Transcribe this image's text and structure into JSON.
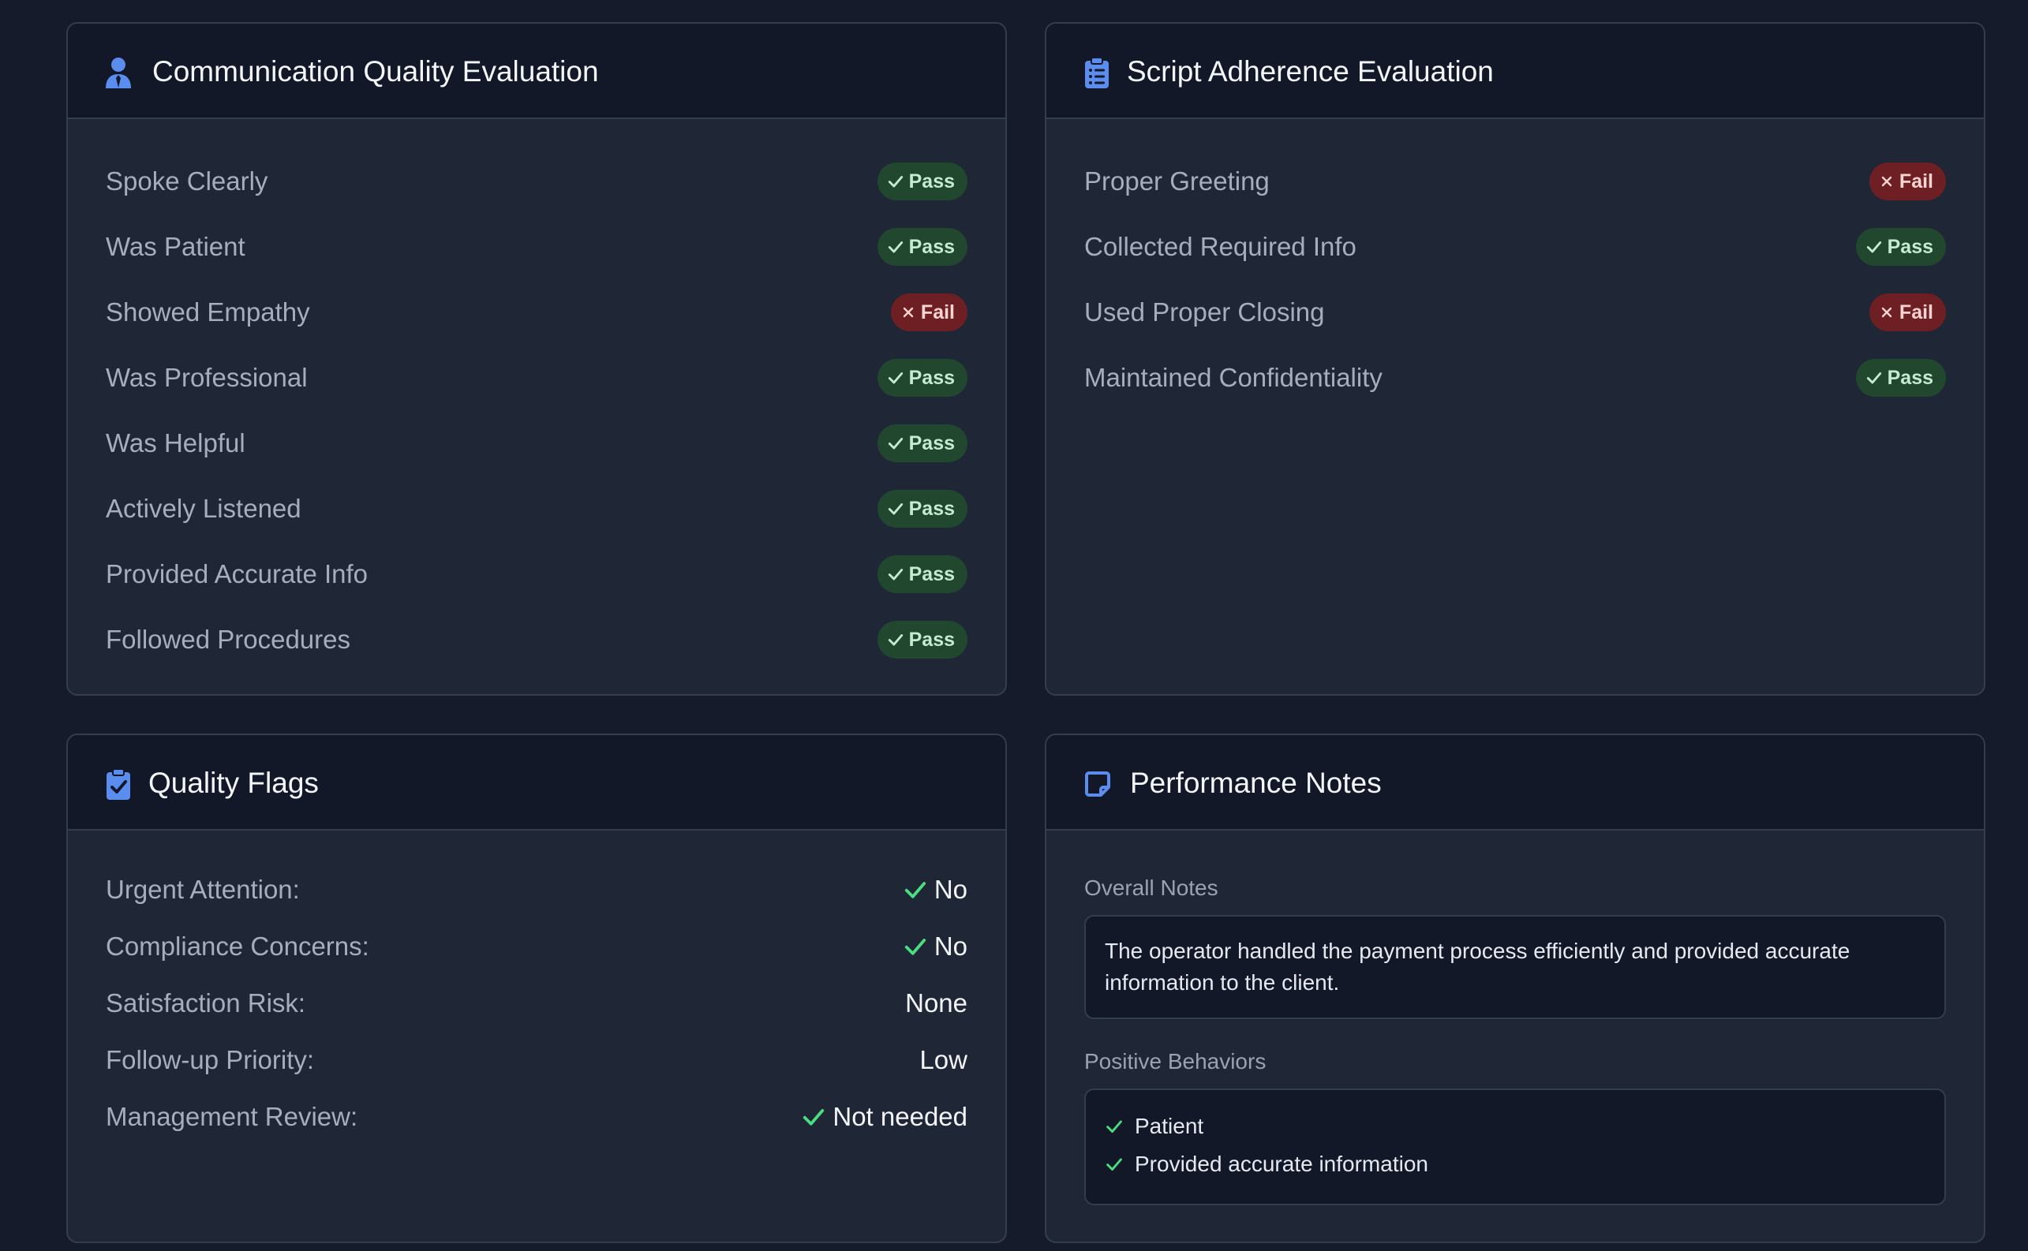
{
  "communication": {
    "title": "Communication Quality Evaluation",
    "items": [
      {
        "label": "Spoke Clearly",
        "status": "Pass"
      },
      {
        "label": "Was Patient",
        "status": "Pass"
      },
      {
        "label": "Showed Empathy",
        "status": "Fail"
      },
      {
        "label": "Was Professional",
        "status": "Pass"
      },
      {
        "label": "Was Helpful",
        "status": "Pass"
      },
      {
        "label": "Actively Listened",
        "status": "Pass"
      },
      {
        "label": "Provided Accurate Info",
        "status": "Pass"
      },
      {
        "label": "Followed Procedures",
        "status": "Pass"
      }
    ]
  },
  "script": {
    "title": "Script Adherence Evaluation",
    "items": [
      {
        "label": "Proper Greeting",
        "status": "Fail"
      },
      {
        "label": "Collected Required Info",
        "status": "Pass"
      },
      {
        "label": "Used Proper Closing",
        "status": "Fail"
      },
      {
        "label": "Maintained Confidentiality",
        "status": "Pass"
      }
    ]
  },
  "flags": {
    "title": "Quality Flags",
    "items": [
      {
        "label": "Urgent Attention:",
        "value": "No",
        "check": true
      },
      {
        "label": "Compliance Concerns:",
        "value": "No",
        "check": true
      },
      {
        "label": "Satisfaction Risk:",
        "value": "None",
        "check": false
      },
      {
        "label": "Follow-up Priority:",
        "value": "Low",
        "check": false
      },
      {
        "label": "Management Review:",
        "value": "Not needed",
        "check": true
      }
    ]
  },
  "notes": {
    "title": "Performance Notes",
    "overall_label": "Overall Notes",
    "overall_text": "The operator handled the payment process efficiently and provided accurate information to the client.",
    "positive_label": "Positive Behaviors",
    "positive_items": [
      "Patient",
      "Provided accurate information"
    ]
  },
  "colors": {
    "background": "#151b2b",
    "card": "#1f2636",
    "header": "#121828",
    "accent_icon": "#5b8def",
    "pass_bg": "#21472f",
    "fail_bg": "#6e1f23",
    "check_green": "#4ade80"
  },
  "icons": {
    "communication": "user-tie-icon",
    "script": "clipboard-list-icon",
    "flags": "clipboard-check-icon",
    "notes": "sticky-note-icon",
    "pass": "check-icon",
    "fail": "x-icon"
  }
}
